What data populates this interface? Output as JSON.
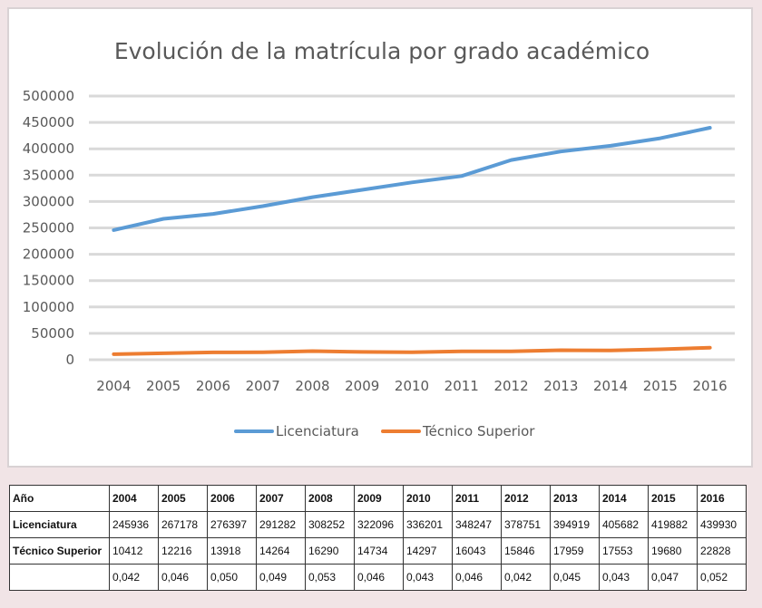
{
  "chart_data": {
    "type": "line",
    "title": "Evolución  de la matrícula por grado académico",
    "categories": [
      "2004",
      "2005",
      "2006",
      "2007",
      "2008",
      "2009",
      "2010",
      "2011",
      "2012",
      "2013",
      "2014",
      "2015",
      "2016"
    ],
    "series": [
      {
        "name": "Licenciatura",
        "color": "#5b9bd5",
        "values": [
          245936,
          267178,
          276397,
          291282,
          308252,
          322096,
          336201,
          348247,
          378751,
          394919,
          405682,
          419882,
          439930
        ]
      },
      {
        "name": "Técnico Superior",
        "color": "#ed7d31",
        "values": [
          10412,
          12216,
          13918,
          14264,
          16290,
          14734,
          14297,
          16043,
          15846,
          17959,
          17553,
          19680,
          22828
        ]
      }
    ],
    "ylim": [
      0,
      500000
    ],
    "yticks": [
      0,
      50000,
      100000,
      150000,
      200000,
      250000,
      300000,
      350000,
      400000,
      450000,
      500000
    ],
    "grid": true,
    "legend": "bottom"
  },
  "table": {
    "header_label": "Año",
    "years": [
      "2004",
      "2005",
      "2006",
      "2007",
      "2008",
      "2009",
      "2010",
      "2011",
      "2012",
      "2013",
      "2014",
      "2015",
      "2016"
    ],
    "rows": [
      {
        "label": "Licenciatura",
        "values": [
          "245936",
          "267178",
          "276397",
          "291282",
          "308252",
          "322096",
          "336201",
          "348247",
          "378751",
          "394919",
          "405682",
          "419882",
          "439930"
        ]
      },
      {
        "label": "Técnico Superior",
        "values": [
          "10412",
          "12216",
          "13918",
          "14264",
          "16290",
          "14734",
          "14297",
          "16043",
          "15846",
          "17959",
          "17553",
          "19680",
          "22828"
        ]
      },
      {
        "label": "",
        "values": [
          "0,042",
          "0,046",
          "0,050",
          "0,049",
          "0,053",
          "0,046",
          "0,043",
          "0,046",
          "0,042",
          "0,045",
          "0,043",
          "0,047",
          "0,052"
        ]
      }
    ]
  }
}
